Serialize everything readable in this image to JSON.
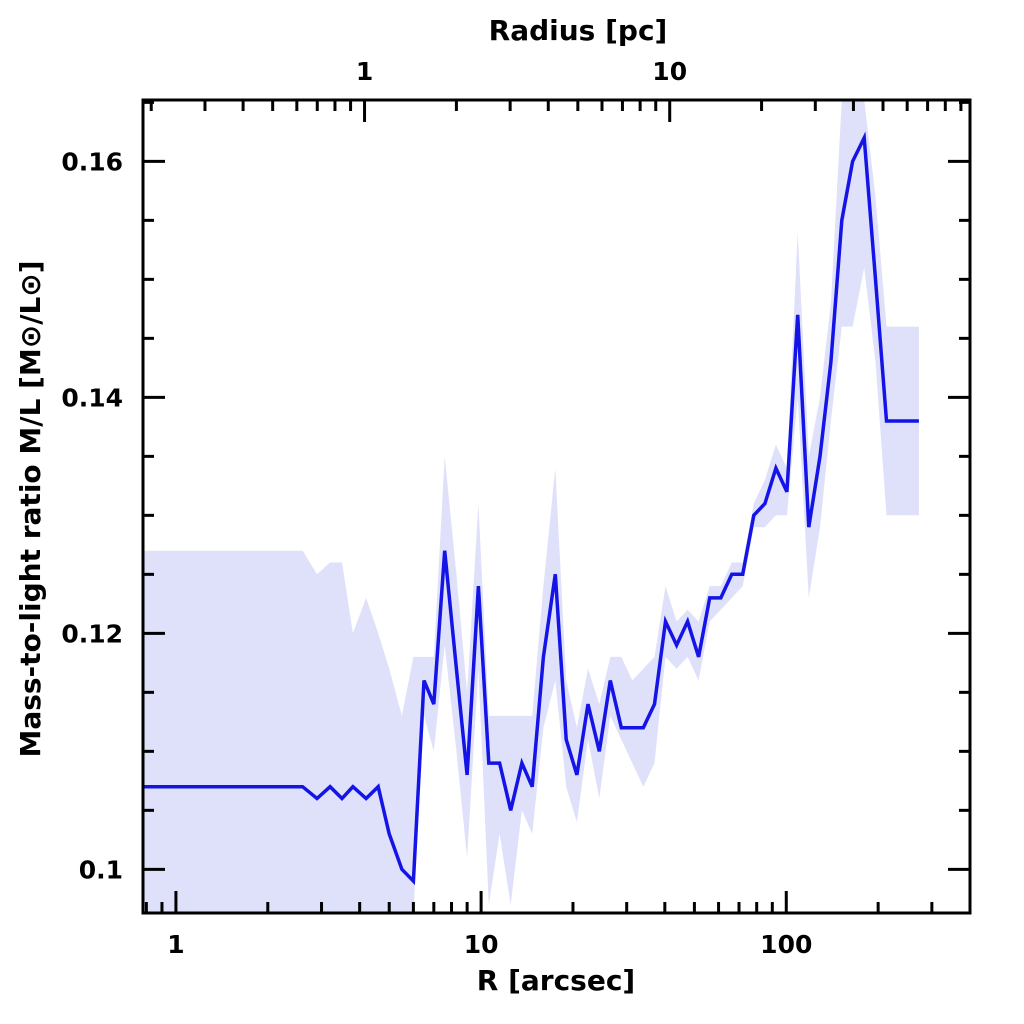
{
  "chart_data": {
    "type": "line",
    "xlabel": "R [arcsec]",
    "ylabel": "Mass-to-light ratio M/L [M⊙/L⊙]",
    "top_xlabel": "Radius [pc]",
    "x_scale": "log",
    "xlim": [
      0.78,
      400
    ],
    "ylim": [
      0.0963,
      0.1652
    ],
    "x_tick_labels": [
      {
        "value": 1,
        "label": "1"
      },
      {
        "value": 10,
        "label": "10"
      },
      {
        "value": 100,
        "label": "100"
      }
    ],
    "top_tick_labels": [
      {
        "value": 4.15,
        "label": "1"
      },
      {
        "value": 41.5,
        "label": "10"
      }
    ],
    "y_tick_labels": [
      {
        "value": 0.1,
        "label": "0.1"
      },
      {
        "value": 0.12,
        "label": "0.12"
      },
      {
        "value": 0.14,
        "label": "0.14"
      },
      {
        "value": 0.16,
        "label": "0.16"
      }
    ],
    "line_color": "#1414e6",
    "band_color": "#dfe0fa",
    "series": [
      {
        "x": [
          0.78,
          2.6,
          2.9,
          3.2,
          3.5,
          3.8,
          4.2,
          4.6,
          5.0,
          5.5,
          6.0,
          6.5,
          7.0,
          7.6,
          8.3,
          9.0,
          9.8,
          10.6,
          11.5,
          12.5,
          13.6,
          14.7,
          16.0,
          17.5,
          19.0,
          20.6,
          22.4,
          24.4,
          26.5,
          28.8,
          31.3,
          34.0,
          37.0,
          40.2,
          43.7,
          47.5,
          51.6,
          56.1,
          61.0,
          66.3,
          72.0,
          78.3,
          85.1,
          92.5,
          100.5,
          109.0,
          118.5,
          129.0,
          140.0,
          152.0,
          165.0,
          180.0,
          196.0,
          213.0,
          231.0,
          250.0,
          272.0
        ],
        "values": [
          0.107,
          0.107,
          0.106,
          0.107,
          0.106,
          0.107,
          0.106,
          0.107,
          0.103,
          0.1,
          0.099,
          0.116,
          0.114,
          0.127,
          0.117,
          0.108,
          0.124,
          0.109,
          0.109,
          0.105,
          0.109,
          0.107,
          0.118,
          0.125,
          0.111,
          0.108,
          0.114,
          0.11,
          0.116,
          0.112,
          0.112,
          0.112,
          0.114,
          0.121,
          0.119,
          0.121,
          0.118,
          0.123,
          0.123,
          0.125,
          0.125,
          0.13,
          0.131,
          0.134,
          0.132,
          0.147,
          0.129,
          0.135,
          0.143,
          0.155,
          0.16,
          0.162,
          0.15,
          0.138,
          0.138,
          0.138,
          0.138
        ],
        "upper": [
          0.127,
          0.127,
          0.125,
          0.126,
          0.126,
          0.12,
          0.123,
          0.12,
          0.117,
          0.113,
          0.118,
          0.118,
          0.118,
          0.135,
          0.125,
          0.115,
          0.131,
          0.113,
          0.113,
          0.113,
          0.113,
          0.113,
          0.124,
          0.134,
          0.116,
          0.112,
          0.117,
          0.114,
          0.118,
          0.118,
          0.116,
          0.117,
          0.118,
          0.124,
          0.121,
          0.122,
          0.121,
          0.124,
          0.124,
          0.126,
          0.126,
          0.131,
          0.133,
          0.136,
          0.134,
          0.154,
          0.135,
          0.14,
          0.148,
          0.17,
          0.17,
          0.17,
          0.157,
          0.146,
          0.146,
          0.146,
          0.146
        ],
        "lower": [
          0.0963,
          0.0963,
          0.0963,
          0.0963,
          0.0963,
          0.0963,
          0.0963,
          0.0963,
          0.0963,
          0.0963,
          0.0963,
          0.113,
          0.11,
          0.119,
          0.11,
          0.101,
          0.117,
          0.097,
          0.103,
          0.097,
          0.105,
          0.103,
          0.112,
          0.116,
          0.107,
          0.104,
          0.111,
          0.106,
          0.113,
          0.111,
          0.109,
          0.107,
          0.109,
          0.118,
          0.117,
          0.118,
          0.116,
          0.121,
          0.122,
          0.123,
          0.124,
          0.129,
          0.129,
          0.13,
          0.13,
          0.14,
          0.123,
          0.129,
          0.138,
          0.146,
          0.146,
          0.151,
          0.143,
          0.13,
          0.13,
          0.13,
          0.13
        ]
      }
    ]
  }
}
